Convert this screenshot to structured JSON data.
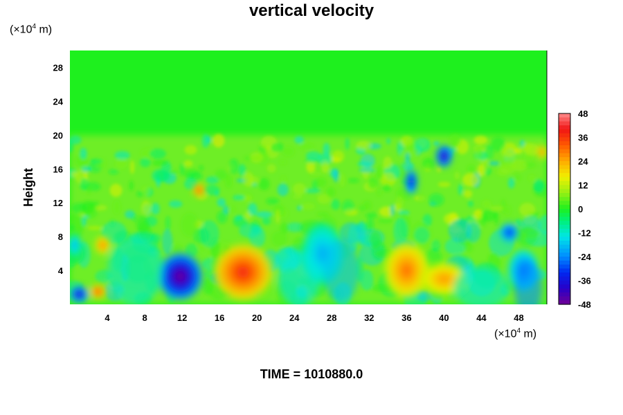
{
  "title": "vertical velocity",
  "time_label": "TIME = 1010880.0",
  "y_unit": {
    "prefix": "(×10",
    "exp": "4",
    "suffix": " m)"
  },
  "x_unit": {
    "prefix": "(×10",
    "exp": "4",
    "suffix": " m)"
  },
  "chart_data": {
    "type": "heatmap",
    "title": "vertical velocity",
    "ylabel": "Height",
    "xlabel": "",
    "x_unit": "×10^4 m",
    "y_unit": "×10^4 m",
    "xlim": [
      0,
      51
    ],
    "ylim": [
      0,
      30
    ],
    "x_ticks": [
      4,
      8,
      12,
      16,
      20,
      24,
      28,
      32,
      36,
      40,
      44,
      48
    ],
    "y_ticks": [
      4,
      8,
      12,
      16,
      20,
      24,
      28
    ],
    "colorbar": {
      "min": -48,
      "max": 48,
      "ticks": [
        48,
        36,
        24,
        12,
        0,
        -12,
        -24,
        -36,
        -48
      ],
      "colormap": "rainbow (purple-blue-cyan-green-yellow-orange-red-pink)"
    },
    "features": [
      {
        "x": 1.0,
        "y": 1.2,
        "value": -42
      },
      {
        "x": 3.0,
        "y": 1.5,
        "value": 36
      },
      {
        "x": 3.5,
        "y": 7.0,
        "value": 30
      },
      {
        "x": 0.5,
        "y": 7.0,
        "value": -20
      },
      {
        "x": 11.8,
        "y": 3.3,
        "value": -48
      },
      {
        "x": 18.5,
        "y": 3.8,
        "value": 38
      },
      {
        "x": 27.0,
        "y": 6.0,
        "value": -20
      },
      {
        "x": 36.0,
        "y": 4.0,
        "value": 30
      },
      {
        "x": 40.0,
        "y": 3.0,
        "value": 26
      },
      {
        "x": 48.5,
        "y": 4.0,
        "value": -28
      },
      {
        "x": 47.0,
        "y": 8.5,
        "value": -34
      },
      {
        "x": 13.8,
        "y": 13.5,
        "value": 36
      },
      {
        "x": 36.5,
        "y": 14.5,
        "value": -40
      },
      {
        "x": 40.0,
        "y": 17.5,
        "value": -44
      },
      {
        "x": 50.5,
        "y": 18.0,
        "value": 30
      }
    ]
  }
}
